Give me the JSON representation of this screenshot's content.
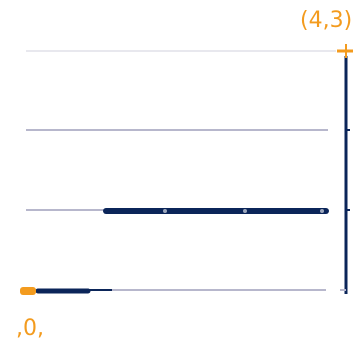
{
  "labels": {
    "top_right": "(4,3)",
    "bottom_left": ",0,"
  },
  "colors": {
    "background": "#ffffff",
    "grid_line": "#b7b7cc",
    "faint_line": "#e8e8ee",
    "path": "#0b2559",
    "accent": "#f39b1e"
  }
}
